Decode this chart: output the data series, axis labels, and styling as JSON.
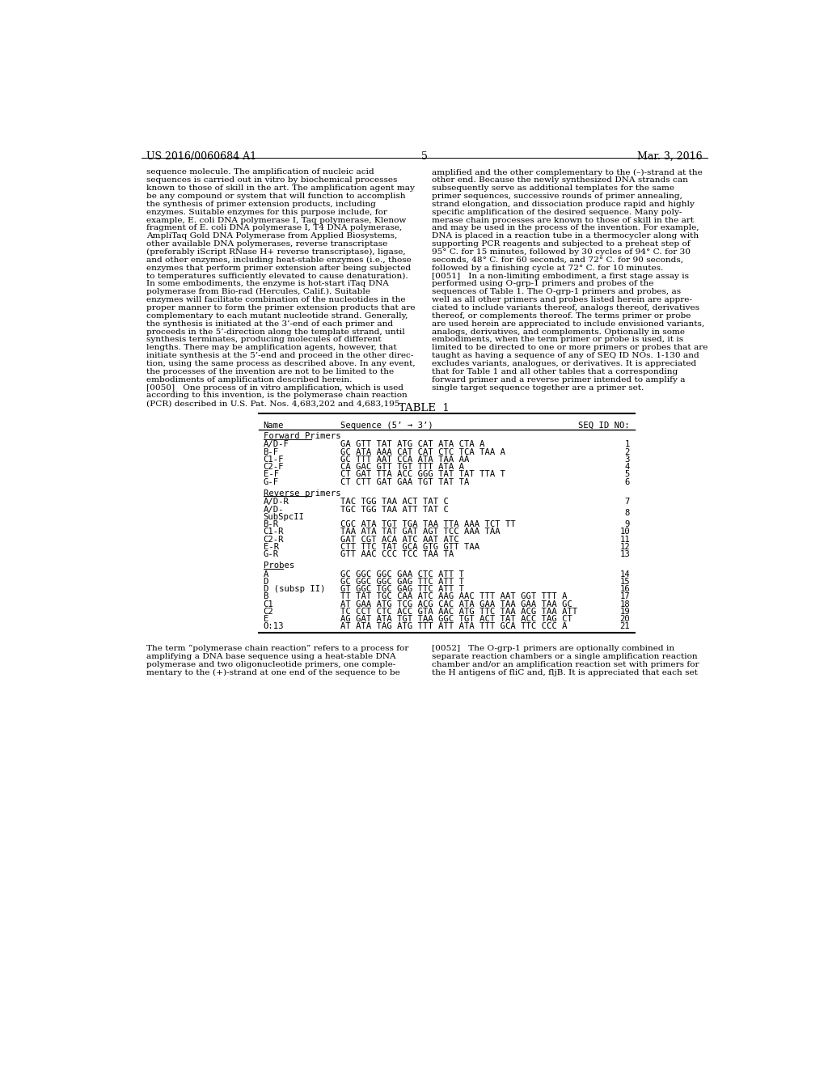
{
  "header_left": "US 2016/0060684 A1",
  "header_right": "Mar. 3, 2016",
  "page_number": "5",
  "background_color": "#ffffff",
  "left_column_text": [
    "sequence molecule. The amplification of nucleic acid",
    "sequences is carried out in vitro by biochemical processes",
    "known to those of skill in the art. The amplification agent may",
    "be any compound or system that will function to accomplish",
    "the synthesis of primer extension products, including",
    "enzymes. Suitable enzymes for this purpose include, for",
    "example, E. coli DNA polymerase I, Taq polymerase, Klenow",
    "fragment of E. coli DNA polymerase I, T4 DNA polymerase,",
    "AmpliTaq Gold DNA Polymerase from Applied Biosystems,",
    "other available DNA polymerases, reverse transcriptase",
    "(preferably iScript RNase H+ reverse transcriptase), ligase,",
    "and other enzymes, including heat-stable enzymes (i.e., those",
    "enzymes that perform primer extension after being subjected",
    "to temperatures sufficiently elevated to cause denaturation).",
    "In some embodiments, the enzyme is hot-start iTaq DNA",
    "polymerase from Bio-rad (Hercules, Calif.). Suitable",
    "enzymes will facilitate combination of the nucleotides in the",
    "proper manner to form the primer extension products that are",
    "complementary to each mutant nucleotide strand. Generally,",
    "the synthesis is initiated at the 3’-end of each primer and",
    "proceeds in the 5’-direction along the template strand, until",
    "synthesis terminates, producing molecules of different",
    "lengths. There may be amplification agents, however, that",
    "initiate synthesis at the 5’-end and proceed in the other direc-",
    "tion, using the same process as described above. In any event,",
    "the processes of the invention are not to be limited to the",
    "embodiments of amplification described herein.",
    "[0050]   One process of in vitro amplification, which is used",
    "according to this invention, is the polymerase chain reaction",
    "(PCR) described in U.S. Pat. Nos. 4,683,202 and 4,683,195."
  ],
  "right_column_text": [
    "amplified and the other complementary to the (–)-strand at the",
    "other end. Because the newly synthesized DNA strands can",
    "subsequently serve as additional templates for the same",
    "primer sequences, successive rounds of primer annealing,",
    "strand elongation, and dissociation produce rapid and highly",
    "specific amplification of the desired sequence. Many poly-",
    "merase chain processes are known to those of skill in the art",
    "and may be used in the process of the invention. For example,",
    "DNA is placed in a reaction tube in a thermocycler along with",
    "supporting PCR reagents and subjected to a preheat step of",
    "95° C. for 15 minutes, followed by 30 cycles of 94° C. for 30",
    "seconds, 48° C. for 60 seconds, and 72° C. for 90 seconds,",
    "followed by a finishing cycle at 72° C. for 10 minutes.",
    "[0051]   In a non-limiting embodiment, a first stage assay is",
    "performed using O-grp-1 primers and probes of the",
    "sequences of Table 1. The O-grp-1 primers and probes, as",
    "well as all other primers and probes listed herein are appre-",
    "ciated to include variants thereof, analogs thereof, derivatives",
    "thereof, or complements thereof. The terms primer or probe",
    "are used herein are appreciated to include envisioned variants,",
    "analogs, derivatives, and complements. Optionally in some",
    "embodiments, when the term primer or probe is used, it is",
    "limited to be directed to one or more primers or probes that are",
    "taught as having a sequence of any of SEQ ID NOs. 1-130 and",
    "excludes variants, analogues, or derivatives. It is appreciated",
    "that for Table 1 and all other tables that a corresponding",
    "forward primer and a reverse primer intended to amplify a",
    "single target sequence together are a primer set."
  ],
  "bottom_left_text": [
    "The term “polymerase chain reaction” refers to a process for",
    "amplifying a DNA base sequence using a heat-stable DNA",
    "polymerase and two oligonucleotide primers, one comple-",
    "mentary to the (+)-strand at one end of the sequence to be"
  ],
  "bottom_right_text": [
    "[0052]   The O-grp-1 primers are optionally combined in",
    "separate reaction chambers or a single amplification reaction",
    "chamber and/or an amplification reaction set with primers for",
    "the H antigens of fliC and, fljB. It is appreciated that each set"
  ],
  "table_title": "TABLE  1",
  "table_col_headers": [
    "Name",
    "Sequence (5’ → 3’)",
    "SEQ ID NO:"
  ],
  "table_sections": [
    {
      "section_name": "Forward Primers",
      "rows": [
        [
          "A/D-F",
          "GA GTT TAT ATG CAT ATA CTA A",
          "1"
        ],
        [
          "B-F",
          "GC ATA AAA CAT CAT CTC TCA TAA A",
          "2"
        ],
        [
          "C1-F",
          "GC TTT AAT CCA ATA TAA AA",
          "3"
        ],
        [
          "C2-F",
          "CA GAC GTT TGT TTT ATA A",
          "4"
        ],
        [
          "E-F",
          "CT GAT TTA ACC GGG TAT TAT TTA T",
          "5"
        ],
        [
          "G-F",
          "CT CTT GAT GAA TGT TAT TA",
          "6"
        ]
      ]
    },
    {
      "section_name": "Reverse primers",
      "rows": [
        [
          "A/D-R",
          "TAC TGG TAA ACT TAT C",
          "7"
        ],
        [
          "A/D-\nSubSpcII",
          "TGC TGG TAA ATT TAT C",
          "8"
        ],
        [
          "B-R",
          "CGC ATA TGT TGA TAA TTA AAA TCT TT",
          "9"
        ],
        [
          "C1-R",
          "TAA ATA TAT GAT AGT TCC AAA TAA",
          "10"
        ],
        [
          "C2-R",
          "GAT CGT ACA ATC AAT ATC",
          "11"
        ],
        [
          "E-R",
          "CTT TTC TAT GCA GTG GTT TAA",
          "12"
        ],
        [
          "G-R",
          "GTT AAC CCC TCC TAA TA",
          "13"
        ]
      ]
    },
    {
      "section_name": "Probes",
      "rows": [
        [
          "A",
          "GC GGC GGC GAA CTC ATT T",
          "14"
        ],
        [
          "D",
          "GC GGC GGC GAG TTC ATT T",
          "15"
        ],
        [
          "D (subsp II)",
          "GT GGC TGC GAG TTC ATT T",
          "16"
        ],
        [
          "B",
          "TT TAT TGC CAA ATC AAG AAC TTT AAT GGT TTT A",
          "17"
        ],
        [
          "C1",
          "AT GAA ATG TCG ACG CAC ATA GAA TAA GAA TAA GC",
          "18"
        ],
        [
          "C2",
          "TC CCT CTC ACC GTA AAC ATG TTC TAA ACG TAA ATT",
          "19"
        ],
        [
          "E",
          "AG GAT ATA TGT TAA GGC TGT ACT TAT ACC TAG CT",
          "20"
        ],
        [
          "O:13",
          "AT ATA TAG ATG TTT ATT ATA TTT GCA TTC CCC A",
          "21"
        ]
      ]
    }
  ]
}
